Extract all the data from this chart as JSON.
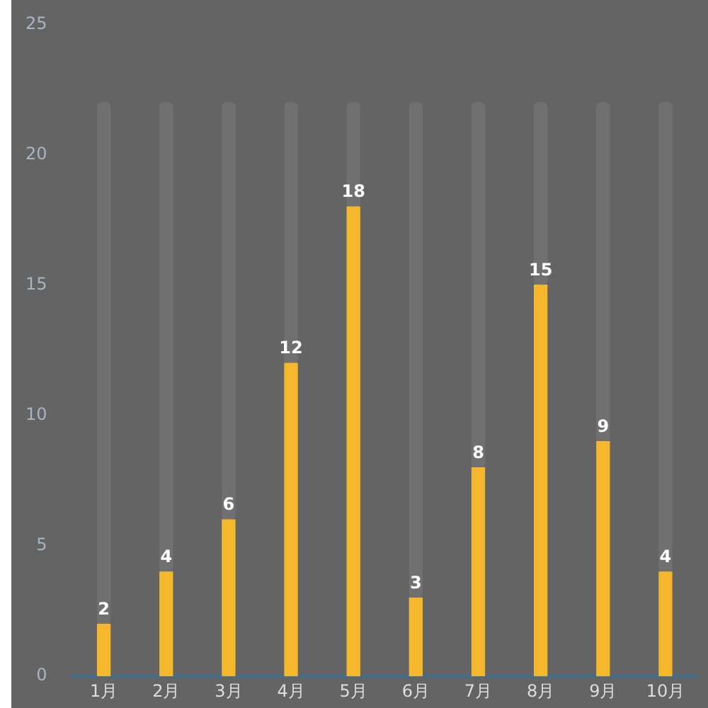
{
  "chart_data": {
    "type": "bar",
    "categories": [
      "1月",
      "2月",
      "3月",
      "4月",
      "5月",
      "6月",
      "7月",
      "8月",
      "9月",
      "10月"
    ],
    "stacked": true,
    "series": [
      {
        "color": "#f5b72c",
        "values": [
          2,
          4,
          6,
          12,
          18,
          3,
          8,
          15,
          9,
          4
        ],
        "value_labels": [
          "2",
          "4",
          "6",
          "12",
          "18",
          "3",
          "8",
          "15",
          "9",
          "4"
        ]
      },
      {
        "color": "#707070",
        "values": [
          20,
          18,
          16,
          10,
          4,
          19,
          14,
          7,
          13,
          18
        ]
      }
    ],
    "ylim": [
      0,
      25
    ],
    "yticks": [
      0,
      5,
      10,
      15,
      20,
      25
    ],
    "grid": false,
    "legend": false
  }
}
